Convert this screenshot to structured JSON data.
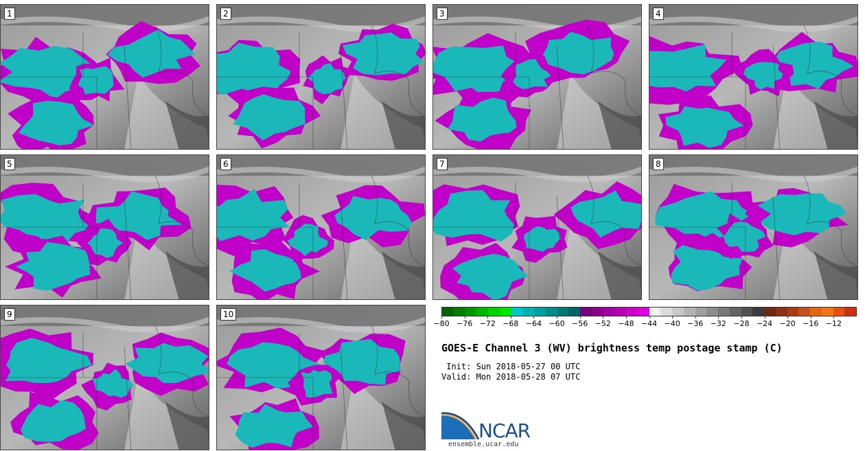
{
  "panels": [
    {
      "label": "1"
    },
    {
      "label": "2"
    },
    {
      "label": "3"
    },
    {
      "label": "4"
    },
    {
      "label": "5"
    },
    {
      "label": "6"
    },
    {
      "label": "7"
    },
    {
      "label": "8"
    },
    {
      "label": "9"
    },
    {
      "label": "10"
    }
  ],
  "colorbar": {
    "colors": [
      "#006400",
      "#007d00",
      "#009600",
      "#00b400",
      "#00d200",
      "#00e600",
      "#00c8c8",
      "#00b4b4",
      "#00a0a0",
      "#008c8c",
      "#007878",
      "#006464",
      "#780078",
      "#8c008c",
      "#a000a0",
      "#b400b4",
      "#c800c8",
      "#dc00dc",
      "#f0f0f0",
      "#dcdcdc",
      "#c8c8c8",
      "#b4b4b4",
      "#a0a0a0",
      "#8c8c8c",
      "#787878",
      "#646464",
      "#505050",
      "#3c3c3c",
      "#6e2814",
      "#8c3214",
      "#aa3c14",
      "#c8501e",
      "#e66414",
      "#f07814",
      "#e65014",
      "#c83214"
    ],
    "ticks": [
      "−80",
      "−76",
      "−72",
      "−68",
      "−64",
      "−60",
      "−56",
      "−52",
      "−48",
      "−44",
      "−40",
      "−36",
      "−32",
      "−28",
      "−24",
      "−20",
      "−16",
      "−12"
    ]
  },
  "title": "GOES-E Channel 3 (WV) brightness temp postage stamp (C)",
  "init": " Init: Sun 2018-05-27 00 UTC",
  "valid": "Valid: Mon 2018-05-28 07 UTC",
  "logo": {
    "name": "NCAR",
    "url": "ensemble.ucar.edu"
  },
  "colors": {
    "cold_cloud": "#1ab8b8",
    "edge": "#c000c8",
    "background_gray": "#8a8a8a"
  }
}
